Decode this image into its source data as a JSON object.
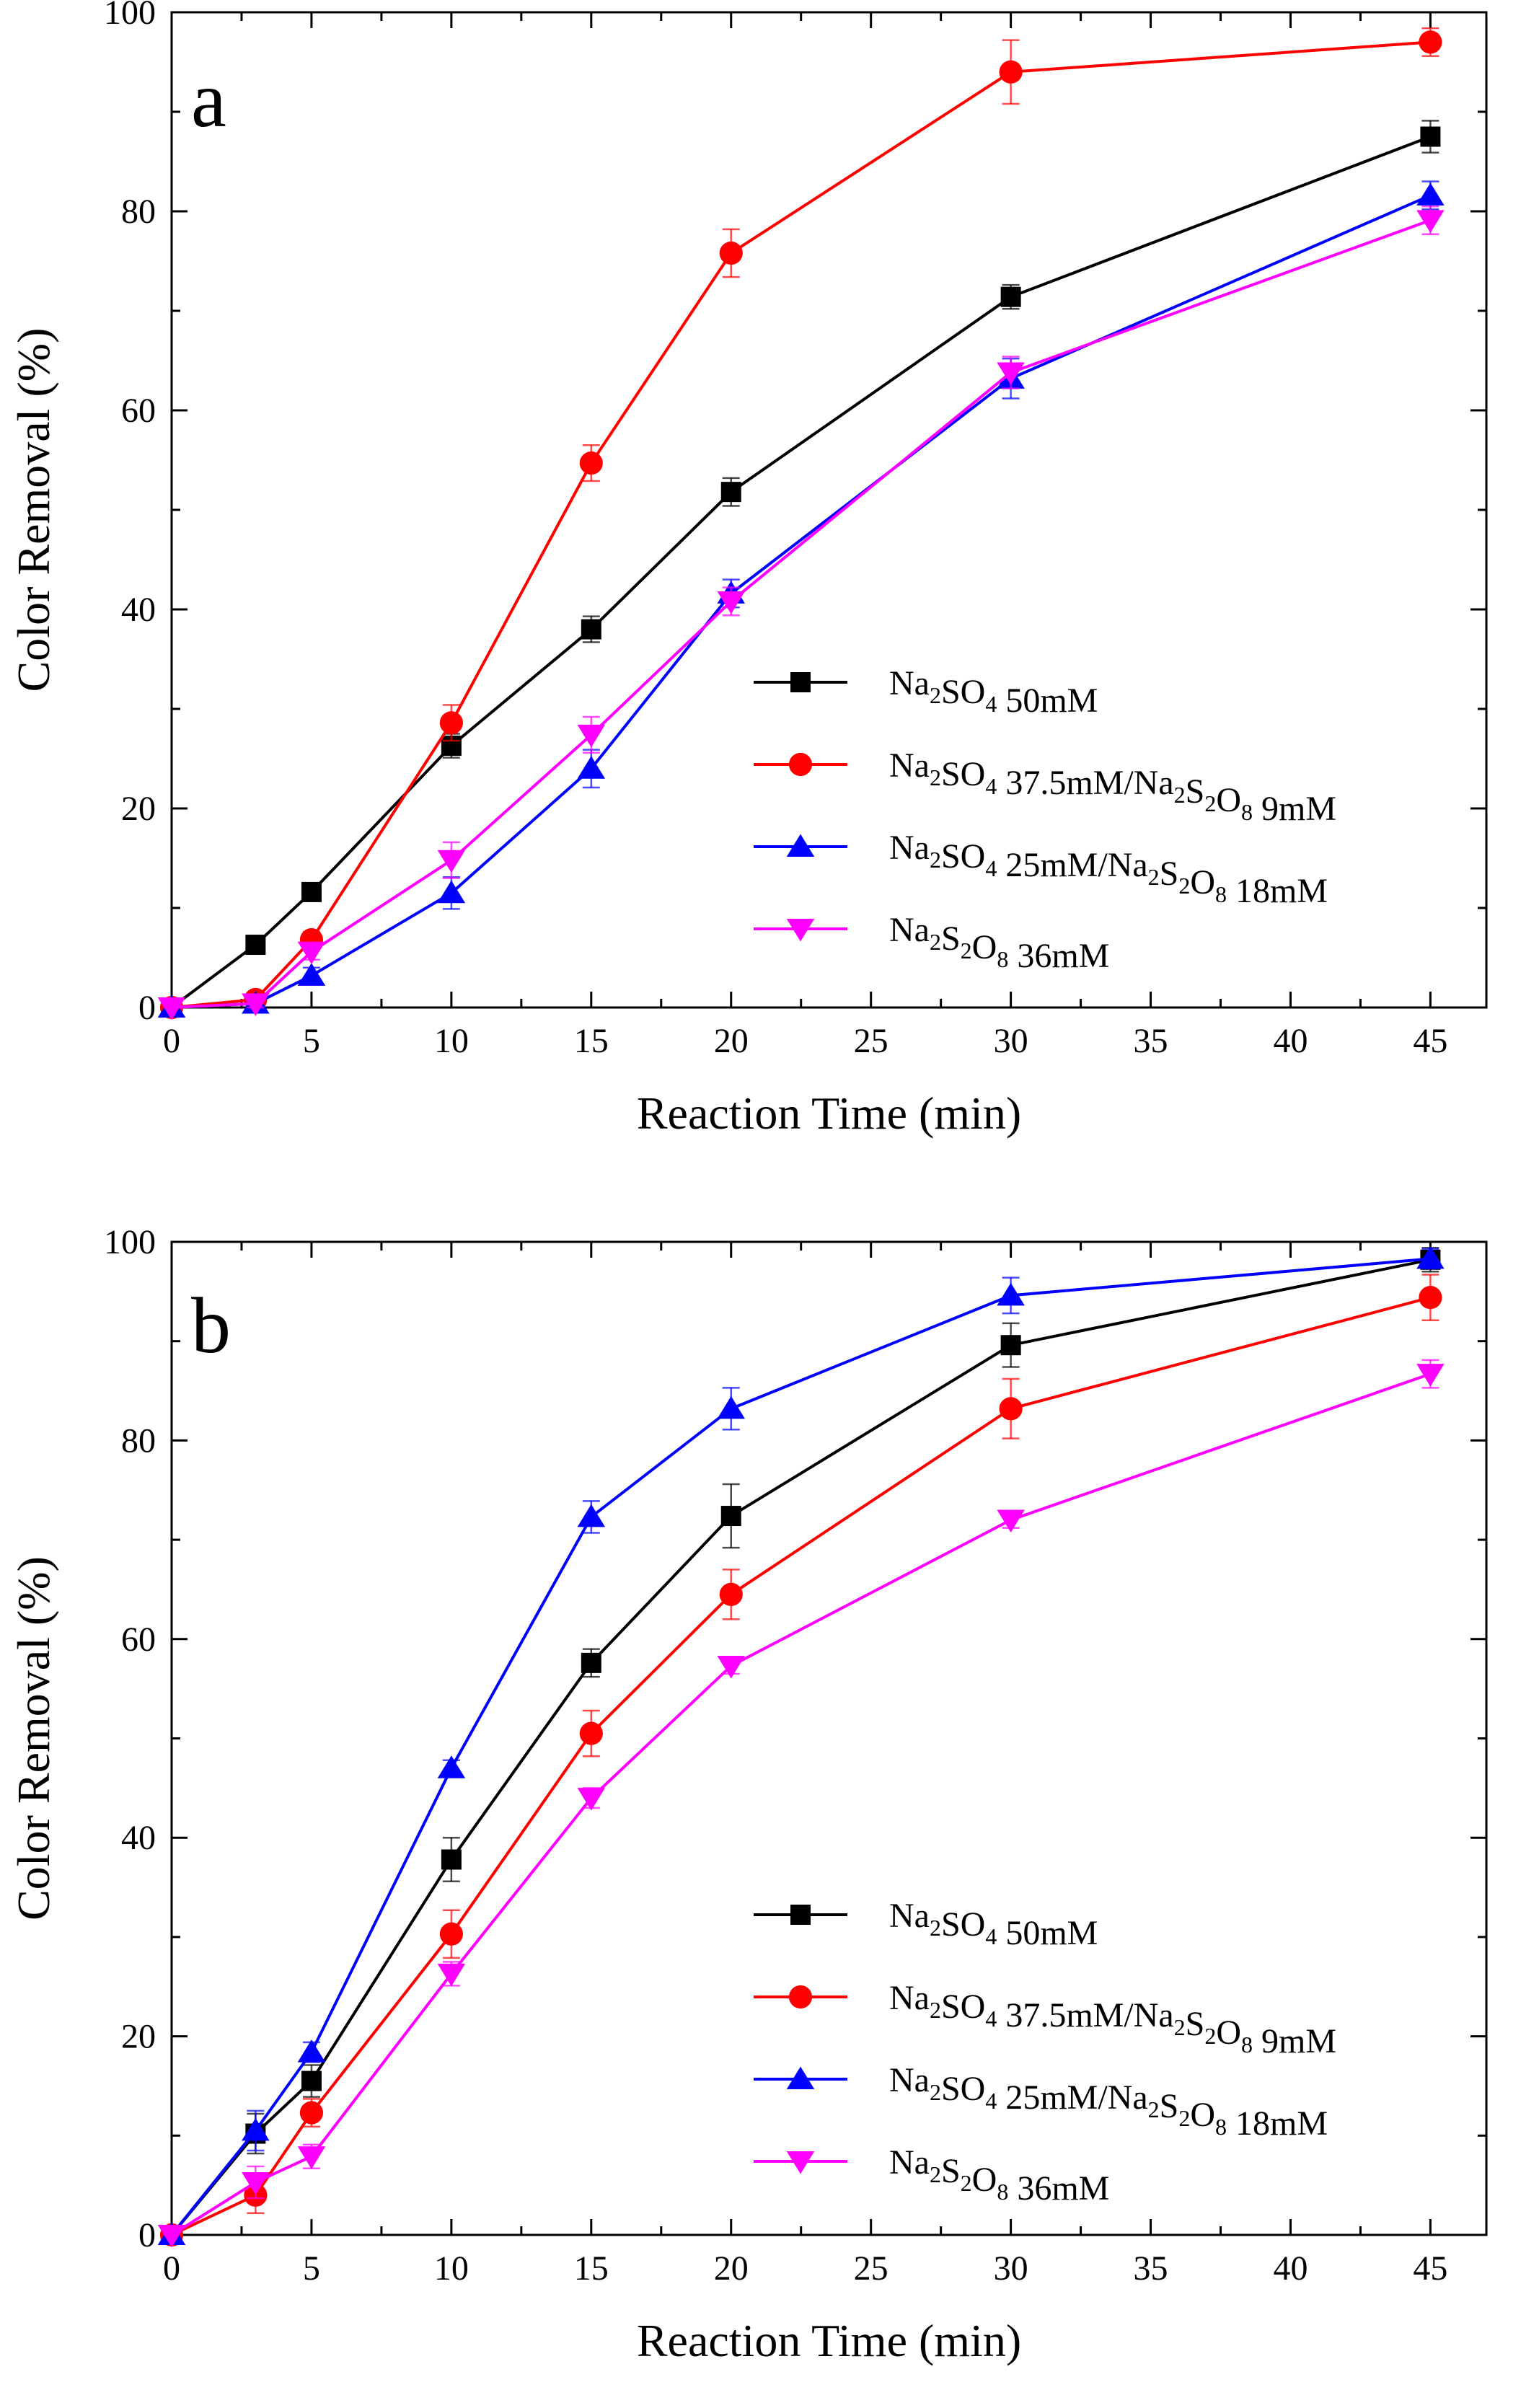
{
  "figure": {
    "description_hidden": false
  },
  "chart_data": [
    {
      "type": "line",
      "panel_label": "a",
      "xlabel": "Reaction Time (min)",
      "ylabel": "Color Removal (%)",
      "xlim": [
        0,
        47
      ],
      "ylim": [
        0,
        100
      ],
      "xticks": [
        0,
        5,
        10,
        15,
        20,
        25,
        30,
        35,
        40,
        45
      ],
      "yticks": [
        0,
        20,
        40,
        60,
        80,
        100
      ],
      "legend_position": "center-right",
      "x": [
        0,
        3,
        5,
        10,
        15,
        20,
        30,
        45
      ],
      "series": [
        {
          "name": "Na2SO4 50mM",
          "color": "#000000",
          "marker": "square",
          "values": [
            0,
            6.3,
            11.6,
            26.3,
            38.0,
            51.8,
            71.4,
            87.5
          ],
          "errors": [
            0,
            0.6,
            0.8,
            1.2,
            1.3,
            1.4,
            1.2,
            1.6
          ]
        },
        {
          "name": "Na2SO4 37.5mM/Na2S2O8 9mM",
          "color": "#ff0000",
          "marker": "circle",
          "values": [
            0,
            0.8,
            6.8,
            28.6,
            54.7,
            75.8,
            94.0,
            97.0
          ],
          "errors": [
            0,
            0.5,
            0.8,
            1.8,
            1.8,
            2.4,
            3.2,
            1.4
          ]
        },
        {
          "name": "Na2SO4 25mM/Na2S2O8 18mM",
          "color": "#0000ff",
          "marker": "triangle-up",
          "values": [
            0,
            0.4,
            3.2,
            11.5,
            24.0,
            41.6,
            63.2,
            81.6
          ],
          "errors": [
            0,
            0.4,
            0.8,
            1.6,
            1.9,
            1.4,
            2.0,
            1.4
          ]
        },
        {
          "name": "Na2S2O8 36mM",
          "color": "#ff00ff",
          "marker": "triangle-down",
          "values": [
            0,
            0.4,
            5.6,
            14.8,
            27.4,
            40.8,
            63.8,
            79.1
          ],
          "errors": [
            0,
            0.4,
            0.8,
            1.8,
            1.8,
            1.4,
            1.6,
            1.4
          ]
        }
      ],
      "legend_entries": [
        {
          "parts": [
            [
              "Na",
              "n"
            ],
            [
              "2",
              "sub"
            ],
            [
              "SO",
              "n"
            ],
            [
              "4",
              "sub"
            ],
            [
              " 50mM",
              "n"
            ]
          ]
        },
        {
          "parts": [
            [
              "Na",
              "n"
            ],
            [
              "2",
              "sub"
            ],
            [
              "SO",
              "n"
            ],
            [
              "4",
              "sub"
            ],
            [
              " 37.5mM/Na",
              "n"
            ],
            [
              "2",
              "sub"
            ],
            [
              "S",
              "n"
            ],
            [
              "2",
              "sub"
            ],
            [
              "O",
              "n"
            ],
            [
              "8",
              "sub"
            ],
            [
              " 9mM",
              "n"
            ]
          ]
        },
        {
          "parts": [
            [
              "Na",
              "n"
            ],
            [
              "2",
              "sub"
            ],
            [
              "SO",
              "n"
            ],
            [
              "4",
              "sub"
            ],
            [
              " 25mM/Na",
              "n"
            ],
            [
              "2",
              "sub"
            ],
            [
              "S",
              "n"
            ],
            [
              "2",
              "sub"
            ],
            [
              "O",
              "n"
            ],
            [
              "8",
              "sub"
            ],
            [
              " 18mM",
              "n"
            ]
          ]
        },
        {
          "parts": [
            [
              "Na",
              "n"
            ],
            [
              "2",
              "sub"
            ],
            [
              "S",
              "n"
            ],
            [
              "2",
              "sub"
            ],
            [
              "O",
              "n"
            ],
            [
              "8",
              "sub"
            ],
            [
              " 36mM",
              "n"
            ]
          ]
        }
      ]
    },
    {
      "type": "line",
      "panel_label": "b",
      "xlabel": "Reaction Time (min)",
      "ylabel": "Color Removal (%)",
      "xlim": [
        0,
        47
      ],
      "ylim": [
        0,
        100
      ],
      "xticks": [
        0,
        5,
        10,
        15,
        20,
        25,
        30,
        35,
        40,
        45
      ],
      "yticks": [
        0,
        20,
        40,
        60,
        80,
        100
      ],
      "legend_position": "bottom-right",
      "x": [
        0,
        3,
        5,
        10,
        15,
        20,
        30,
        45
      ],
      "series": [
        {
          "name": "Na2SO4 50mM",
          "color": "#000000",
          "marker": "square",
          "values": [
            0,
            10.2,
            15.5,
            37.8,
            57.6,
            72.4,
            89.6,
            98.2
          ],
          "errors": [
            0,
            2.0,
            1.6,
            2.2,
            1.4,
            3.2,
            2.2,
            1.2
          ]
        },
        {
          "name": "Na2SO4 37.5mM/Na2S2O8 9mM",
          "color": "#ff0000",
          "marker": "circle",
          "values": [
            0,
            4.0,
            12.3,
            30.3,
            50.5,
            64.5,
            83.2,
            94.4
          ],
          "errors": [
            0,
            1.8,
            1.4,
            2.4,
            2.3,
            2.5,
            3.0,
            2.3
          ]
        },
        {
          "name": "Na2SO4 25mM/Na2S2O8 18mM",
          "color": "#0000ff",
          "marker": "triangle-up",
          "values": [
            0,
            10.5,
            18.4,
            47.0,
            72.3,
            83.2,
            94.6,
            98.3
          ],
          "errors": [
            0,
            2.0,
            1.0,
            0.8,
            1.6,
            2.1,
            1.8,
            1.0
          ]
        },
        {
          "name": "Na2S2O8 36mM",
          "color": "#ff00ff",
          "marker": "triangle-down",
          "values": [
            0,
            5.3,
            7.9,
            26.3,
            44.0,
            57.3,
            72.0,
            86.7
          ],
          "errors": [
            0,
            1.6,
            1.2,
            1.2,
            1.0,
            0.8,
            0.8,
            1.4
          ]
        }
      ],
      "legend_entries": [
        {
          "parts": [
            [
              "Na",
              "n"
            ],
            [
              "2",
              "sub"
            ],
            [
              "SO",
              "n"
            ],
            [
              "4",
              "sub"
            ],
            [
              " 50mM",
              "n"
            ]
          ]
        },
        {
          "parts": [
            [
              "Na",
              "n"
            ],
            [
              "2",
              "sub"
            ],
            [
              "SO",
              "n"
            ],
            [
              "4",
              "sub"
            ],
            [
              " 37.5mM/Na",
              "n"
            ],
            [
              "2",
              "sub"
            ],
            [
              "S",
              "n"
            ],
            [
              "2",
              "sub"
            ],
            [
              "O",
              "n"
            ],
            [
              "8",
              "sub"
            ],
            [
              " 9mM",
              "n"
            ]
          ]
        },
        {
          "parts": [
            [
              "Na",
              "n"
            ],
            [
              "2",
              "sub"
            ],
            [
              "SO",
              "n"
            ],
            [
              "4",
              "sub"
            ],
            [
              " 25mM/Na",
              "n"
            ],
            [
              "2",
              "sub"
            ],
            [
              "S",
              "n"
            ],
            [
              "2",
              "sub"
            ],
            [
              "O",
              "n"
            ],
            [
              "8",
              "sub"
            ],
            [
              " 18mM",
              "n"
            ]
          ]
        },
        {
          "parts": [
            [
              "Na",
              "n"
            ],
            [
              "2",
              "sub"
            ],
            [
              "S",
              "n"
            ],
            [
              "2",
              "sub"
            ],
            [
              "O",
              "n"
            ],
            [
              "8",
              "sub"
            ],
            [
              " 36mM",
              "n"
            ]
          ]
        }
      ]
    }
  ]
}
